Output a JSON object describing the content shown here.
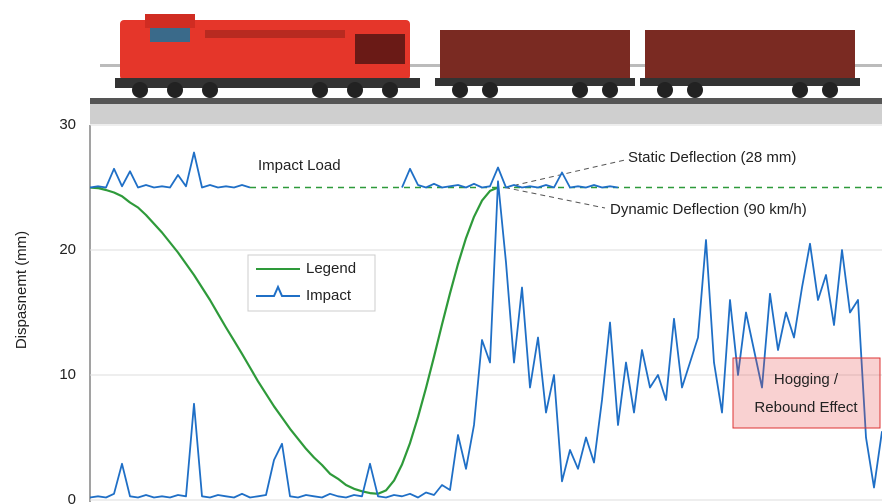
{
  "chart_data": {
    "type": "line",
    "ylabel": "Dispasnemt (mm)",
    "ylim": [
      0,
      30
    ],
    "yticks": [
      0,
      10,
      20,
      30
    ],
    "grid": true,
    "reference_line": 25,
    "annotations": {
      "impact": "Impact Load",
      "static": "Static Deflection (28 mm)",
      "dynamic": "Dynamic Deflection (90 km/h)",
      "hogging": [
        "Hogging /",
        "Rebound Effect"
      ]
    },
    "series": [
      {
        "name": "Legend",
        "color": "#2e9a3a",
        "values": [
          25.0,
          24.95,
          24.8,
          24.6,
          24.3,
          23.8,
          23.4,
          22.8,
          22.1,
          21.4,
          20.6,
          19.8,
          18.9,
          18.0,
          17.0,
          16.0,
          14.9,
          13.8,
          12.75,
          11.7,
          10.6,
          9.5,
          8.5,
          7.5,
          6.6,
          5.7,
          4.9,
          4.1,
          3.4,
          2.8,
          2.1,
          1.7,
          1.2,
          0.9,
          0.7,
          0.55,
          0.5,
          0.77,
          1.55,
          2.84,
          4.55,
          6.63,
          8.96,
          11.46,
          14.04,
          16.54,
          18.88,
          20.95,
          22.66,
          23.95,
          24.73,
          25.0,
          null,
          null,
          null,
          null,
          null,
          null,
          null,
          null,
          null,
          null,
          null,
          null,
          null,
          null,
          null,
          null,
          null,
          null,
          null,
          null,
          null,
          null,
          null,
          null,
          null,
          null,
          null,
          null,
          null,
          null,
          null,
          null,
          null,
          null,
          null,
          null,
          null,
          null,
          null,
          null,
          null,
          null,
          null,
          null,
          null,
          null,
          null,
          null
        ]
      },
      {
        "name": "Impact",
        "color": "#1f6fc6",
        "values": [
          0.2,
          0.3,
          0.2,
          0.5,
          2.9,
          0.3,
          0.2,
          0.4,
          0.2,
          0.3,
          0.2,
          0.4,
          0.3,
          7.7,
          0.3,
          0.2,
          0.4,
          0.3,
          0.2,
          0.5,
          0.2,
          0.3,
          0.4,
          3.2,
          4.5,
          0.3,
          0.2,
          0.4,
          0.3,
          0.2,
          0.5,
          0.3,
          0.2,
          0.4,
          0.3,
          2.9,
          0.3,
          0.2,
          0.4,
          0.3,
          0.5,
          0.2,
          0.6,
          0.4,
          1.2,
          0.8,
          5.2,
          2.5,
          6,
          12.8,
          11,
          25.5,
          19,
          11,
          17,
          9,
          13,
          7,
          10,
          1.5,
          4,
          2.5,
          5,
          3,
          8,
          14.2,
          6,
          11,
          7,
          12,
          9,
          10,
          8,
          14.5,
          9,
          11,
          13,
          20.8,
          11,
          7,
          16,
          10,
          15,
          12,
          9,
          16.5,
          12,
          15,
          13,
          17,
          20.5,
          16,
          18,
          14,
          20,
          15,
          16,
          5,
          1,
          5.5
        ]
      },
      {
        "color": "#1f6fc6",
        "values": [
          25,
          25.1,
          25,
          26.5,
          25.1,
          26.3,
          25,
          25.2,
          25,
          25.1,
          25,
          26,
          25.1,
          27.8,
          25,
          25.2,
          25,
          25.1,
          25,
          25.2,
          25,
          null,
          null,
          null,
          null,
          null,
          null,
          null,
          null,
          null,
          null,
          null,
          null,
          null,
          null,
          null,
          null,
          null,
          null,
          25,
          26.5,
          25.2,
          25,
          25.3,
          25,
          25.1,
          25.2,
          25,
          25.3,
          25,
          25.1,
          26.6,
          25,
          25.2,
          25,
          25.1,
          25,
          25.2,
          25,
          26.2,
          25,
          25.1,
          25,
          25.2,
          25,
          25.1,
          25,
          null,
          null,
          null,
          null,
          null,
          null,
          null,
          null,
          null,
          null,
          null,
          null,
          null,
          null,
          null,
          null,
          null,
          null,
          null,
          null,
          null,
          null,
          null,
          null,
          null,
          null,
          null,
          null,
          null,
          null,
          null,
          null,
          null
        ]
      }
    ]
  }
}
